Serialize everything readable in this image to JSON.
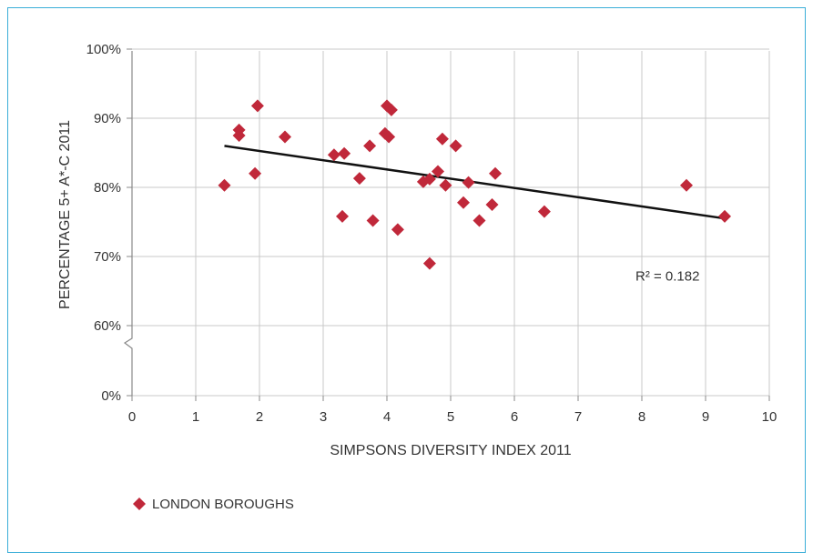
{
  "chart_data": {
    "type": "scatter",
    "xlabel": "SIMPSONS DIVERSITY INDEX 2011",
    "ylabel": "PERCENTAGE 5+ A*-C 2011",
    "xlim": [
      0,
      10
    ],
    "ylim": [
      0,
      100
    ],
    "x_ticks": [
      "0",
      "1",
      "2",
      "3",
      "4",
      "5",
      "6",
      "7",
      "8",
      "9",
      "10"
    ],
    "y_ticks": [
      "0%",
      "60%",
      "70%",
      "80%",
      "90%",
      "100%"
    ],
    "y_axis_break": "between 0% and 60%",
    "grid": true,
    "series": [
      {
        "name": "LONDON BOROUGHS",
        "color": "#c0283a",
        "marker": "diamond",
        "points": [
          [
            1.45,
            80.3
          ],
          [
            1.68,
            88.3
          ],
          [
            1.68,
            87.5
          ],
          [
            1.93,
            82.0
          ],
          [
            1.97,
            91.8
          ],
          [
            2.4,
            87.3
          ],
          [
            3.17,
            84.7
          ],
          [
            3.33,
            84.9
          ],
          [
            3.3,
            75.8
          ],
          [
            3.57,
            81.3
          ],
          [
            3.73,
            86.0
          ],
          [
            3.78,
            75.2
          ],
          [
            3.97,
            87.8
          ],
          [
            4.0,
            91.8
          ],
          [
            4.07,
            91.2
          ],
          [
            4.03,
            87.3
          ],
          [
            4.17,
            73.9
          ],
          [
            4.57,
            80.8
          ],
          [
            4.67,
            81.2
          ],
          [
            4.67,
            69.0
          ],
          [
            4.8,
            82.3
          ],
          [
            4.87,
            87.0
          ],
          [
            4.92,
            80.3
          ],
          [
            5.08,
            86.0
          ],
          [
            5.2,
            77.8
          ],
          [
            5.28,
            80.7
          ],
          [
            5.45,
            75.2
          ],
          [
            5.65,
            77.5
          ],
          [
            5.7,
            82.0
          ],
          [
            6.47,
            76.5
          ],
          [
            8.7,
            80.3
          ],
          [
            9.3,
            75.8
          ]
        ]
      }
    ],
    "trendline": {
      "x": [
        1.45,
        9.3
      ],
      "y": [
        86.0,
        75.5
      ],
      "color": "#111111"
    },
    "annotation": {
      "text": "R² = 0.182",
      "x": 7.9,
      "y": 66.5
    },
    "legend": {
      "placement": "bottom-left",
      "label": "LONDON BOROUGHS"
    }
  }
}
